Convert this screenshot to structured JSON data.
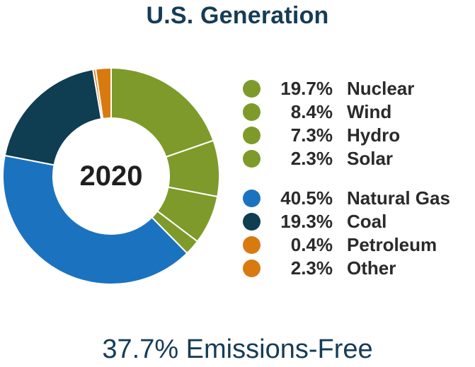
{
  "title": "U.S. Generation",
  "footer_text": "37.7% Emissions-Free",
  "chart_data": {
    "type": "pie",
    "center_label": "2020",
    "slices": [
      {
        "label": "Nuclear",
        "value": 19.7,
        "display": "19.7%",
        "color": "#7e9a2a"
      },
      {
        "label": "Wind",
        "value": 8.4,
        "display": "8.4%",
        "color": "#7e9a2a"
      },
      {
        "label": "Hydro",
        "value": 7.3,
        "display": "7.3%",
        "color": "#7e9a2a"
      },
      {
        "label": "Solar",
        "value": 2.3,
        "display": "2.3%",
        "color": "#7e9a2a"
      },
      {
        "label": "Natural Gas",
        "value": 40.5,
        "display": "40.5%",
        "color": "#1b73bf"
      },
      {
        "label": "Coal",
        "value": 19.3,
        "display": "19.3%",
        "color": "#0f3d52"
      },
      {
        "label": "Petroleum",
        "value": 0.4,
        "display": "0.4%",
        "color": "#d87a10"
      },
      {
        "label": "Other",
        "value": 2.3,
        "display": "2.3%",
        "color": "#d87a10"
      }
    ]
  }
}
